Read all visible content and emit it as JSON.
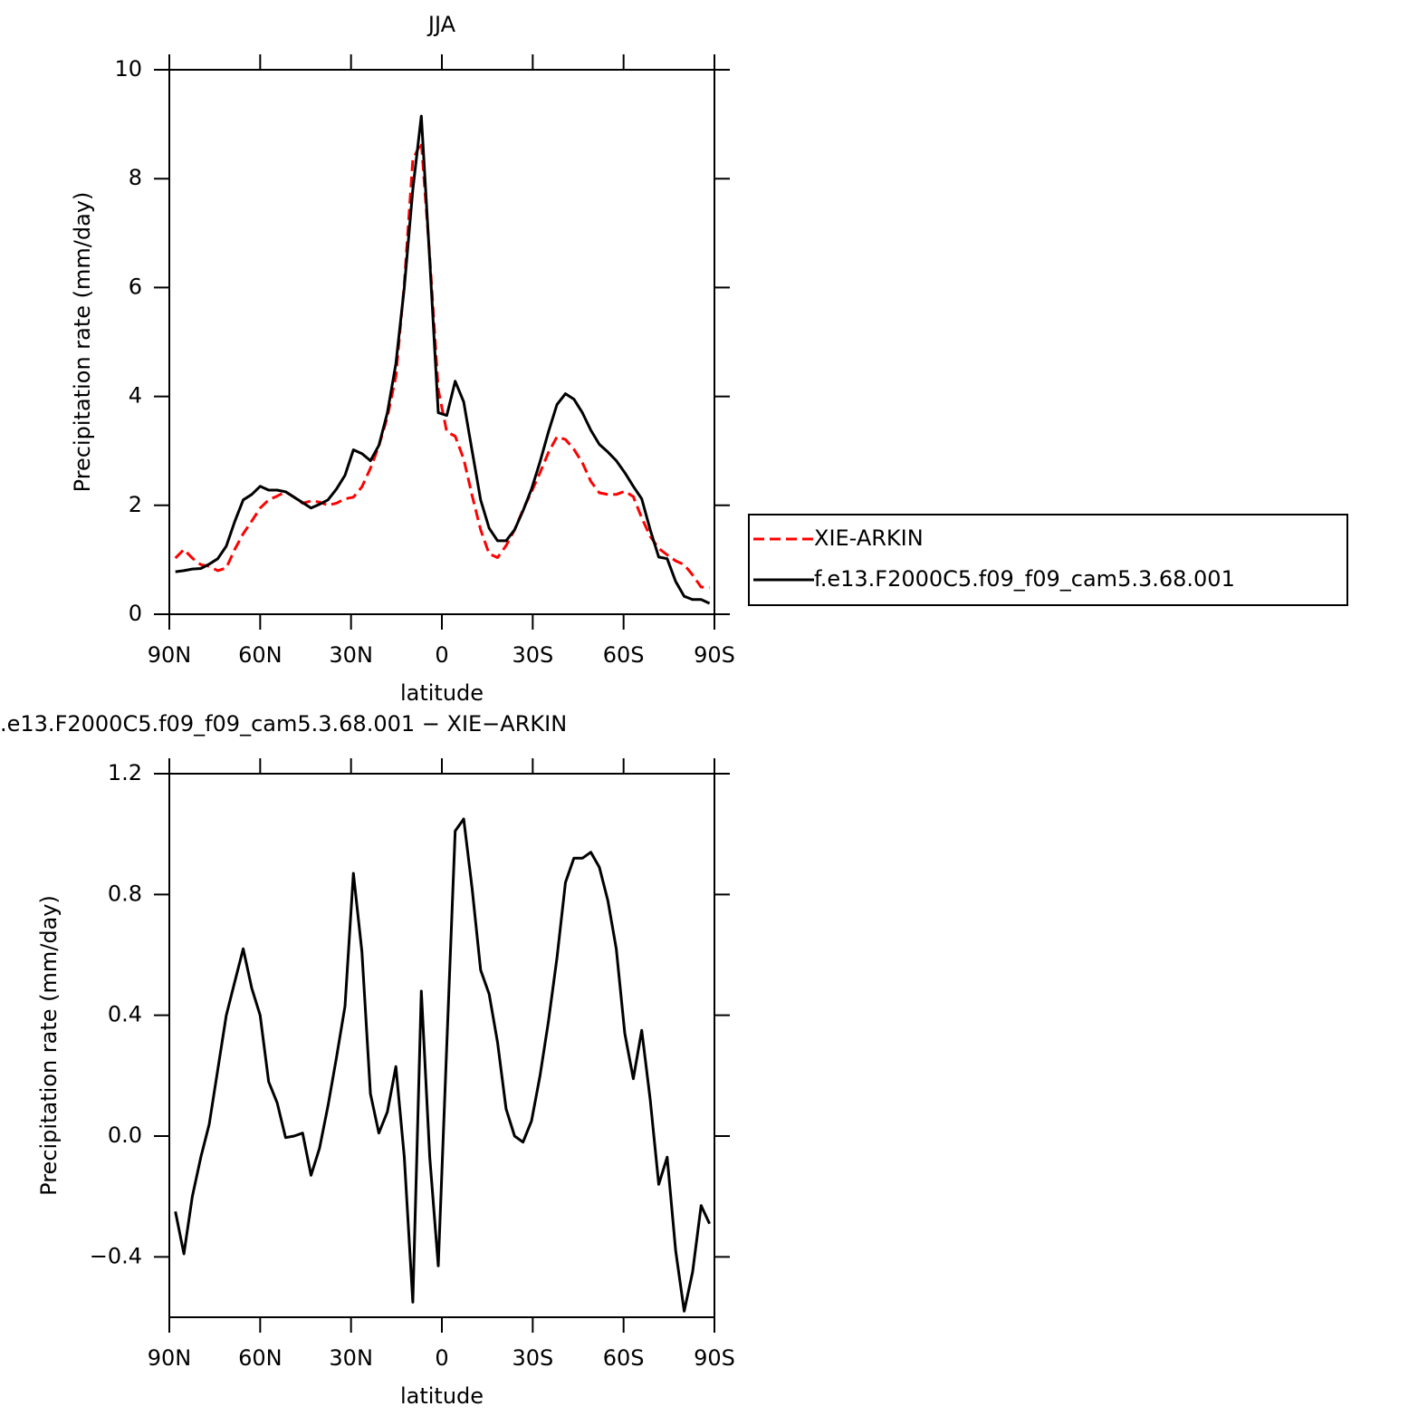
{
  "chart_data": [
    {
      "type": "line",
      "title": "JJA",
      "xlabel": "latitude",
      "ylabel": "Precipitation rate (mm/day)",
      "x": [
        88,
        85.2,
        82.4,
        79.6,
        76.8,
        74,
        71.2,
        68.4,
        65.6,
        62.8,
        60,
        57.2,
        54.4,
        51.6,
        48.8,
        46,
        43.2,
        40.4,
        37.6,
        34.8,
        32,
        29.2,
        26.4,
        23.6,
        20.8,
        18,
        15.2,
        12.4,
        9.6,
        6.8,
        4,
        1.2,
        -1.6,
        -4.4,
        -7.2,
        -10,
        -12.8,
        -15.6,
        -18.4,
        -21.2,
        -24,
        -26.8,
        -29.6,
        -32.4,
        -35.2,
        -38,
        -40.8,
        -43.6,
        -46.4,
        -49.2,
        -52,
        -54.8,
        -57.6,
        -60.4,
        -63.2,
        -66,
        -68.8,
        -71.6,
        -74.4,
        -77.2,
        -80,
        -82.8,
        -85.6,
        -88.4
      ],
      "series": [
        {
          "name": "XIE-ARKIN",
          "color": "#ff0000",
          "dashed": true,
          "values": [
            1.03,
            1.19,
            1.03,
            0.91,
            0.88,
            0.8,
            0.85,
            1.19,
            1.48,
            1.71,
            1.95,
            2.1,
            2.17,
            2.25,
            2.15,
            2.04,
            2.08,
            2.06,
            2.0,
            2.04,
            2.12,
            2.15,
            2.34,
            2.68,
            3.09,
            3.62,
            4.37,
            6.07,
            8.35,
            8.67,
            6.57,
            4.13,
            3.35,
            3.27,
            2.85,
            2.18,
            1.55,
            1.11,
            1.04,
            1.26,
            1.55,
            1.92,
            2.25,
            2.6,
            2.97,
            3.26,
            3.21,
            3.03,
            2.78,
            2.44,
            2.23,
            2.2,
            2.2,
            2.26,
            2.16,
            1.77,
            1.43,
            1.21,
            1.09,
            0.98,
            0.91,
            0.72,
            0.5,
            0.49
          ]
        },
        {
          "name": "f.e13.F2000C5.f09_f09_cam5.3.68.001",
          "color": "#000000",
          "dashed": false,
          "values": [
            0.78,
            0.8,
            0.83,
            0.84,
            0.92,
            1.02,
            1.25,
            1.7,
            2.1,
            2.2,
            2.35,
            2.28,
            2.28,
            2.25,
            2.15,
            2.05,
            1.95,
            2.02,
            2.1,
            2.3,
            2.55,
            3.02,
            2.95,
            2.82,
            3.1,
            3.7,
            4.6,
            6.0,
            7.8,
            9.15,
            6.5,
            3.7,
            3.65,
            4.28,
            3.9,
            3.0,
            2.1,
            1.58,
            1.35,
            1.35,
            1.55,
            1.9,
            2.3,
            2.8,
            3.35,
            3.85,
            4.05,
            3.95,
            3.7,
            3.38,
            3.12,
            2.98,
            2.82,
            2.6,
            2.35,
            2.12,
            1.55,
            1.05,
            1.02,
            0.6,
            0.33,
            0.27,
            0.27,
            0.2
          ]
        }
      ],
      "xlim": [
        90,
        -90
      ],
      "xticks": [
        {
          "value": 90,
          "label": "90N"
        },
        {
          "value": 60,
          "label": "60N"
        },
        {
          "value": 30,
          "label": "30N"
        },
        0,
        {
          "value": -30,
          "label": "30S"
        },
        {
          "value": -60,
          "label": "60S"
        },
        {
          "value": -90,
          "label": "90S"
        }
      ],
      "ylim": [
        0,
        10
      ],
      "yticks": [
        0,
        2,
        4,
        6,
        8,
        10
      ],
      "legend": "right"
    },
    {
      "type": "line",
      "title": ".e13.F2000C5.f09_f09_cam5.3.68.001 − XIE−ARKIN",
      "xlabel": "latitude",
      "ylabel": "Precipitation rate (mm/day)",
      "x": [
        88,
        85.2,
        82.4,
        79.6,
        76.8,
        74,
        71.2,
        68.4,
        65.6,
        62.8,
        60,
        57.2,
        54.4,
        51.6,
        48.8,
        46,
        43.2,
        40.4,
        37.6,
        34.8,
        32,
        29.2,
        26.4,
        23.6,
        20.8,
        18,
        15.2,
        12.4,
        9.6,
        6.8,
        4,
        1.2,
        -1.6,
        -4.4,
        -7.2,
        -10,
        -12.8,
        -15.6,
        -18.4,
        -21.2,
        -24,
        -26.8,
        -29.6,
        -32.4,
        -35.2,
        -38,
        -40.8,
        -43.6,
        -46.4,
        -49.2,
        -52,
        -54.8,
        -57.6,
        -60.4,
        -63.2,
        -66,
        -68.8,
        -71.6,
        -74.4,
        -77.2,
        -80,
        -82.8,
        -85.6,
        -88.4
      ],
      "series": [
        {
          "color": "#000000",
          "dashed": false,
          "values": [
            -0.25,
            -0.39,
            -0.2,
            -0.07,
            0.04,
            0.22,
            0.4,
            0.51,
            0.62,
            0.49,
            0.4,
            0.18,
            0.11,
            -0.005,
            0.0,
            0.01,
            -0.13,
            -0.04,
            0.1,
            0.26,
            0.43,
            0.87,
            0.61,
            0.14,
            0.01,
            0.08,
            0.23,
            -0.07,
            -0.55,
            0.48,
            -0.07,
            -0.43,
            0.3,
            1.01,
            1.05,
            0.82,
            0.55,
            0.47,
            0.31,
            0.09,
            0.0,
            -0.02,
            0.05,
            0.2,
            0.38,
            0.59,
            0.84,
            0.92,
            0.92,
            0.94,
            0.89,
            0.78,
            0.62,
            0.34,
            0.19,
            0.35,
            0.12,
            -0.16,
            -0.07,
            -0.38,
            -0.58,
            -0.45,
            -0.23,
            -0.29
          ]
        }
      ],
      "xlim": [
        90,
        -90
      ],
      "xticks": [
        {
          "value": 90,
          "label": "90N"
        },
        {
          "value": 60,
          "label": "60N"
        },
        {
          "value": 30,
          "label": "30N"
        },
        0,
        {
          "value": -30,
          "label": "30S"
        },
        {
          "value": -60,
          "label": "60S"
        },
        {
          "value": -90,
          "label": "90S"
        }
      ],
      "ylim": [
        -0.6,
        1.2
      ],
      "yticks": [
        {
          "value": -0.4,
          "label": "−0.4"
        },
        {
          "value": 0,
          "label": "0.0"
        },
        0.4,
        0.8,
        1.2
      ]
    }
  ]
}
